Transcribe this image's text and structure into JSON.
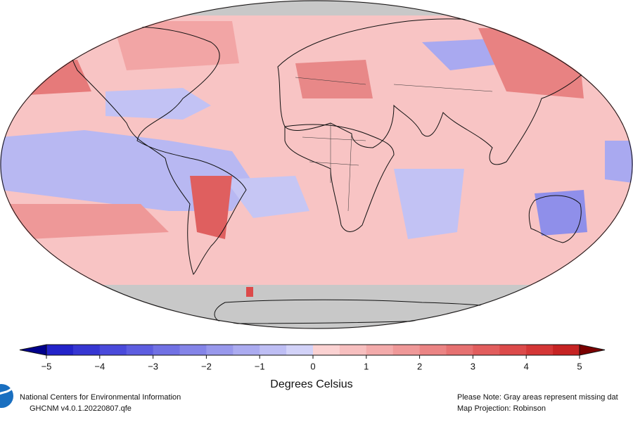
{
  "map": {
    "projection_note": "Map Projection: Robinson",
    "missing_note": "Please Note: Gray areas represent missing dat"
  },
  "colorbar": {
    "label": "Degrees Celsius",
    "min": -5,
    "max": 5,
    "ticks": [
      {
        "value": -5,
        "label": "−5"
      },
      {
        "value": -4,
        "label": "−4"
      },
      {
        "value": -3,
        "label": "−3"
      },
      {
        "value": -2,
        "label": "−2"
      },
      {
        "value": -1,
        "label": "−1"
      },
      0,
      1,
      2,
      3,
      4,
      5
    ],
    "colors": [
      "#2323c9",
      "#3636d2",
      "#4a4adb",
      "#5d5de0",
      "#7171e4",
      "#8484e8",
      "#9898ec",
      "#ababf0",
      "#bebef4",
      "#d2d2f8",
      "#fbd2d2",
      "#f7bfbf",
      "#f3abab",
      "#ef9898",
      "#eb8484",
      "#e67171",
      "#e25d5d",
      "#dc4a4a",
      "#d43636",
      "#c62323"
    ],
    "under_color": "#00008c",
    "over_color": "#7a0000"
  },
  "footer": {
    "org": "National Centers for Environmental Information",
    "dataset": "GHCNM v4.0.1.20220807.qfe"
  }
}
